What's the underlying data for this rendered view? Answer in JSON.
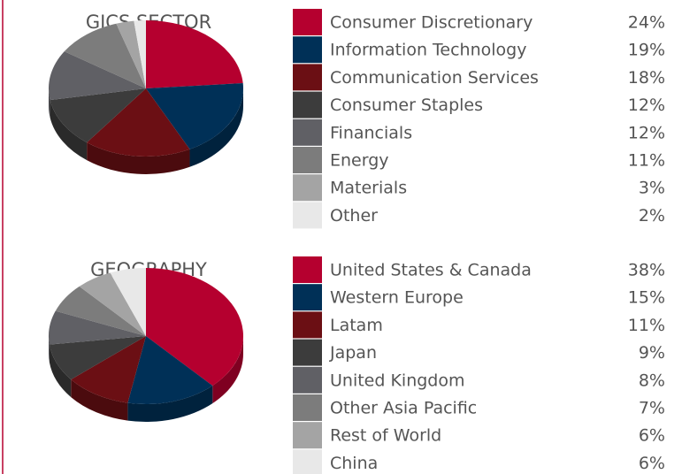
{
  "chart_data": [
    {
      "type": "pie",
      "title": "GICS SECTOR",
      "categories": [
        "Consumer Discretionary",
        "Information Technology",
        "Communication Services",
        "Consumer Staples",
        "Financials",
        "Energy",
        "Materials",
        "Other"
      ],
      "values": [
        24,
        19,
        18,
        12,
        12,
        11,
        3,
        2
      ],
      "value_labels": [
        "24%",
        "19%",
        "18%",
        "12%",
        "12%",
        "11%",
        "3%",
        "2%"
      ],
      "colors": [
        "#b5002f",
        "#003057",
        "#6b0f14",
        "#3c3c3c",
        "#606065",
        "#7c7c7c",
        "#a4a4a4",
        "#e8e8e8"
      ]
    },
    {
      "type": "pie",
      "title": "GEOGRAPHY",
      "categories": [
        "United States & Canada",
        "Western Europe",
        "Latam",
        "Japan",
        "United Kingdom",
        "Other Asia Pacific",
        "Rest of World",
        "China"
      ],
      "values": [
        38,
        15,
        11,
        9,
        8,
        7,
        6,
        6
      ],
      "value_labels": [
        "38%",
        "15%",
        "11%",
        "9%",
        "8%",
        "7%",
        "6%",
        "6%"
      ],
      "colors": [
        "#b5002f",
        "#003057",
        "#6b0f14",
        "#3c3c3c",
        "#606065",
        "#7c7c7c",
        "#a4a4a4",
        "#e8e8e8"
      ]
    }
  ]
}
